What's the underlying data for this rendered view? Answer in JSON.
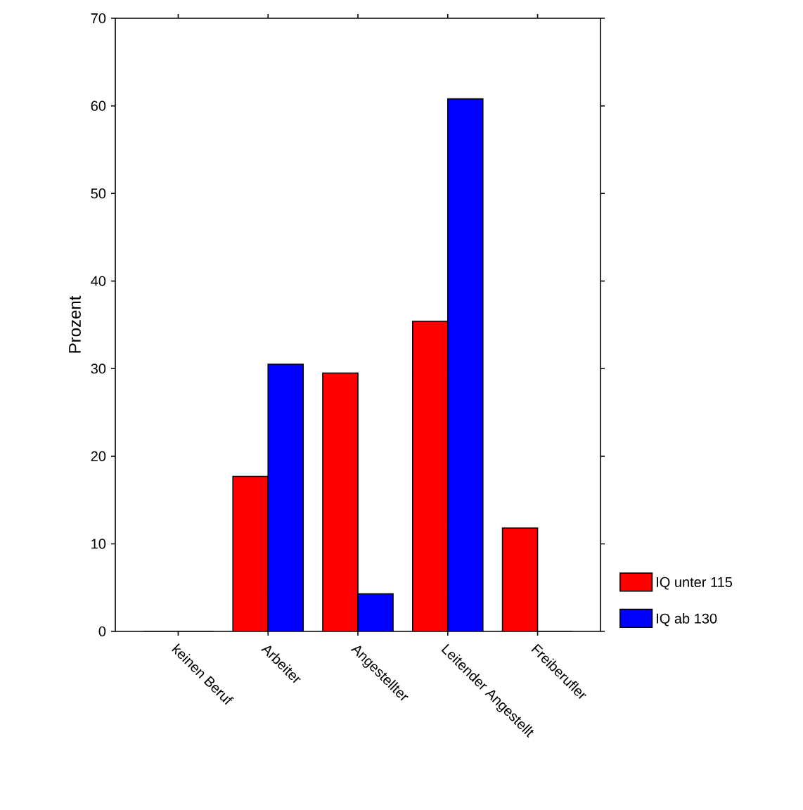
{
  "chart_data": {
    "type": "bar",
    "ylabel": "Prozent",
    "categories": [
      "keinen Beruf",
      "Arbeiter",
      "Angestellter",
      "Leitender Angestellt",
      "Freiberufler"
    ],
    "series": [
      {
        "name": "IQ unter 115",
        "color": "#ff0000",
        "values": [
          0,
          17.7,
          29.5,
          35.4,
          11.8
        ]
      },
      {
        "name": "IQ ab 130",
        "color": "#0000ff",
        "values": [
          0,
          30.5,
          4.3,
          60.8,
          0
        ]
      }
    ],
    "ylim": [
      0,
      70
    ],
    "yticks": [
      0,
      10,
      20,
      30,
      40,
      50,
      60,
      70
    ],
    "legend": "bottom right"
  }
}
